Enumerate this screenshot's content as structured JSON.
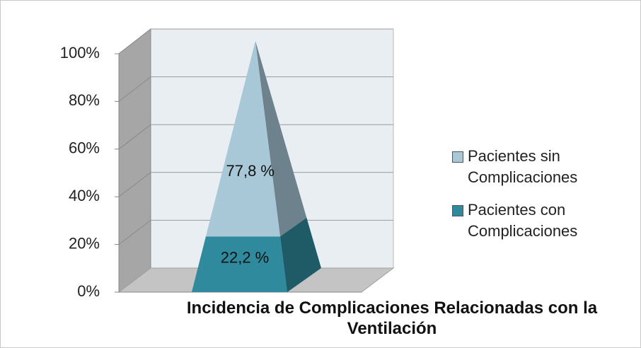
{
  "chart_data": {
    "type": "pyramid",
    "stacked": true,
    "categories": [
      "Incidencia de Complicaciones Relacionadas con la Ventilación"
    ],
    "series": [
      {
        "name": "Pacientes sin Complicaciones",
        "color": "#a8c8d8",
        "values": [
          77.8
        ],
        "value_labels": [
          "77,8 %"
        ]
      },
      {
        "name": "Pacientes con Complicaciones",
        "color": "#2f8a9e",
        "values": [
          22.2
        ],
        "value_labels": [
          "22,2 %"
        ]
      }
    ],
    "ylim": [
      0,
      100
    ],
    "yticks": [
      {
        "value": 0,
        "label": "0%"
      },
      {
        "value": 20,
        "label": "20%"
      },
      {
        "value": 40,
        "label": "40%"
      },
      {
        "value": 60,
        "label": "60%"
      },
      {
        "value": 80,
        "label": "80%"
      },
      {
        "value": 100,
        "label": "100%"
      }
    ],
    "grid": true,
    "legend": "right"
  }
}
